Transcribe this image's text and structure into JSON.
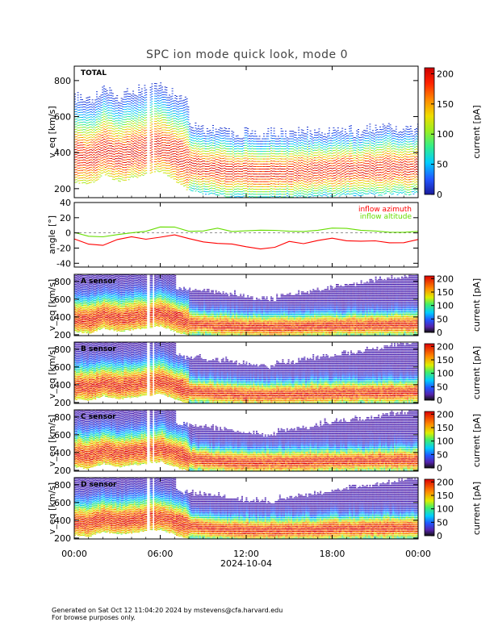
{
  "figure": {
    "title": "SPC ion mode quick look, mode 0",
    "footer_line1": "Generated on Sat Oct 12 11:04:20 2024 by mstevens@cfa.harvard.edu",
    "footer_line2": "For browse purposes only."
  },
  "chart_data": [
    {
      "type": "heatmap",
      "panel": "TOTAL",
      "ylabel": "v_eq [km/s]",
      "ylim": [
        150,
        880
      ],
      "yticks": [
        200,
        400,
        600,
        800
      ],
      "colorbar_label": "current [pA]",
      "colorbar_range": [
        0,
        210
      ],
      "colorbar_ticks": [
        0,
        50,
        100,
        150,
        200
      ],
      "bulk_speed_kms": [
        [
          0,
          380
        ],
        [
          1,
          360
        ],
        [
          2,
          420
        ],
        [
          3,
          380
        ],
        [
          4,
          400
        ],
        [
          5,
          420
        ],
        [
          6,
          440
        ],
        [
          7,
          380
        ],
        [
          8,
          330
        ],
        [
          10,
          300
        ],
        [
          12,
          285
        ],
        [
          14,
          285
        ],
        [
          16,
          290
        ],
        [
          18,
          300
        ],
        [
          20,
          305
        ],
        [
          22,
          310
        ],
        [
          24,
          310
        ]
      ]
    },
    {
      "type": "line",
      "panel": "angle",
      "ylabel": "angle [°]",
      "ylim": [
        -45,
        40
      ],
      "yticks": [
        -40,
        -20,
        0,
        20,
        40
      ],
      "series": [
        {
          "name": "inflow azimuth",
          "color": "#ff0000",
          "x": [
            0,
            1,
            2,
            3,
            4,
            5,
            6,
            7,
            8,
            9,
            10,
            11,
            12,
            13,
            14,
            15,
            16,
            17,
            18,
            19,
            20,
            21,
            22,
            23,
            24
          ],
          "y": [
            -8,
            -14,
            -18,
            -10,
            -5,
            -8,
            -6,
            -3,
            -6,
            -10,
            -12,
            -16,
            -18,
            -20,
            -18,
            -12,
            -15,
            -10,
            -8,
            -10,
            -12,
            -10,
            -14,
            -12,
            -8
          ]
        },
        {
          "name": "inflow altitude",
          "color": "#66dd00",
          "x": [
            0,
            1,
            2,
            3,
            4,
            5,
            6,
            7,
            8,
            9,
            10,
            11,
            12,
            13,
            14,
            15,
            16,
            17,
            18,
            19,
            20,
            21,
            22,
            23,
            24
          ],
          "y": [
            2,
            -6,
            -4,
            -2,
            0,
            2,
            8,
            6,
            4,
            3,
            5,
            2,
            4,
            2,
            3,
            4,
            0,
            2,
            5,
            4,
            3,
            2,
            0,
            2,
            4
          ]
        }
      ]
    },
    {
      "type": "heatmap",
      "panel": "A sensor",
      "ylabel": "v_eq [km/s]",
      "ylim": [
        190,
        880
      ],
      "yticks": [
        200,
        400,
        600,
        800
      ],
      "colorbar_label": "current [pA]",
      "colorbar_ticks": [
        0,
        50,
        100,
        150,
        200
      ]
    },
    {
      "type": "heatmap",
      "panel": "B sensor",
      "ylabel": "v_eq [km/s]",
      "ylim": [
        190,
        880
      ],
      "yticks": [
        200,
        400,
        600,
        800
      ],
      "colorbar_label": "current [pA]",
      "colorbar_ticks": [
        0,
        50,
        100,
        150,
        200
      ]
    },
    {
      "type": "heatmap",
      "panel": "C sensor",
      "ylabel": "v_eq [km/s]",
      "ylim": [
        190,
        880
      ],
      "yticks": [
        200,
        400,
        600,
        800
      ],
      "colorbar_label": "current [pA]",
      "colorbar_ticks": [
        0,
        50,
        100,
        150,
        200
      ]
    },
    {
      "type": "heatmap",
      "panel": "D sensor",
      "ylabel": "v_eq [km/s]",
      "ylim": [
        190,
        880
      ],
      "yticks": [
        200,
        400,
        600,
        800
      ],
      "colorbar_label": "current [pA]",
      "colorbar_ticks": [
        0,
        50,
        100,
        150,
        200
      ]
    }
  ],
  "time_axis": {
    "tick_labels": [
      "00:00",
      "06:00",
      "12:00",
      "18:00",
      "00:00"
    ],
    "tick_hours": [
      0,
      6,
      12,
      18,
      24
    ],
    "date_label": "2024-10-04"
  }
}
